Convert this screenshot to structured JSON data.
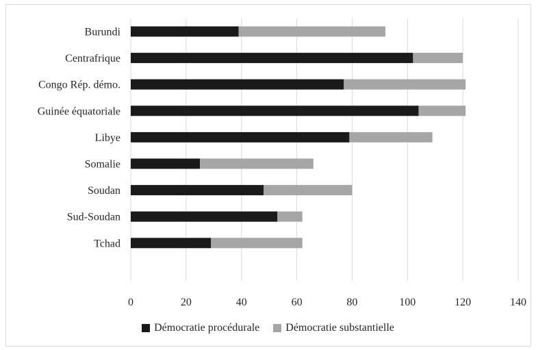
{
  "chart_data": {
    "type": "bar",
    "orientation": "horizontal",
    "stacked": true,
    "categories": [
      "Burundi",
      "Centrafrique",
      "Congo Rép. démo.",
      "Guinée équatoriale",
      "Libye",
      "Somalie",
      "Soudan",
      "Sud-Soudan",
      "Tchad"
    ],
    "series": [
      {
        "name": "Démocratie procédurale",
        "color": "#1a1a1a",
        "values": [
          39,
          102,
          77,
          104,
          79,
          25,
          48,
          53,
          29
        ]
      },
      {
        "name": "Démocratie substantielle",
        "color": "#a6a6a6",
        "values": [
          53,
          18,
          44,
          17,
          30,
          41,
          32,
          9,
          33
        ]
      }
    ],
    "xlim": [
      0,
      140
    ],
    "xticks": [
      0,
      20,
      40,
      60,
      80,
      100,
      120,
      140
    ],
    "grid": "vertical",
    "legend": "bottom"
  }
}
